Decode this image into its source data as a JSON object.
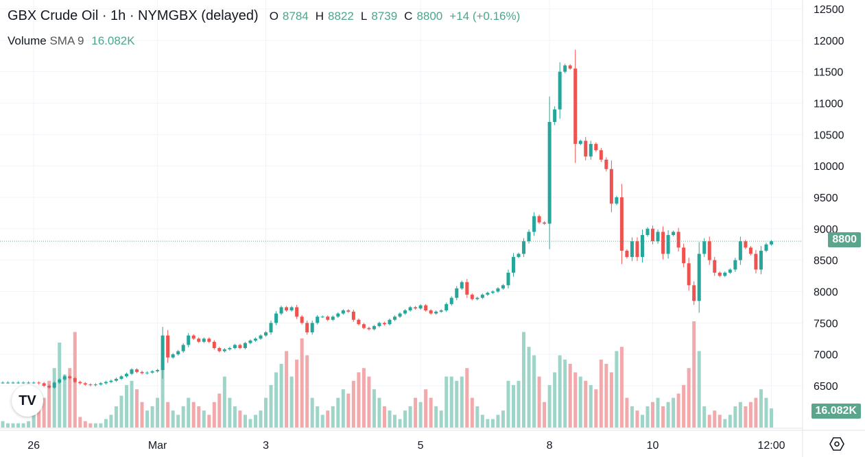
{
  "header": {
    "title": "GBX Crude Oil · 1h · NYMGBX (delayed)",
    "open_label": "O",
    "open": "8784",
    "high_label": "H",
    "high": "8822",
    "low_label": "L",
    "low": "8739",
    "close_label": "C",
    "close": "8800",
    "change": "+14 (+0.16%)"
  },
  "volume_legend": {
    "label": "Volume",
    "indicator": "SMA 9",
    "value": "16.082K"
  },
  "price_badge": "8800",
  "volume_badge": "16.082K",
  "logo_text": "TV",
  "icons": {
    "settings": "hexagon-settings-icon"
  },
  "colors": {
    "up": "#26a69a",
    "down": "#ef5350",
    "up_vol": "#9fd4c8",
    "down_vol": "#f2a9ab",
    "badge": "#5aa58c"
  },
  "chart_data": {
    "type": "candlestick",
    "y_ticks": [
      "12500",
      "12000",
      "11500",
      "11000",
      "10500",
      "10000",
      "9500",
      "9000",
      "8500",
      "8000",
      "7500",
      "7000",
      "6500"
    ],
    "ylim": [
      6500,
      12500
    ],
    "x_ticks": [
      {
        "label": "26",
        "index": 6
      },
      {
        "label": "Mar",
        "index": 30
      },
      {
        "label": "3",
        "index": 51
      },
      {
        "label": "5",
        "index": 81
      },
      {
        "label": "8",
        "index": 106
      },
      {
        "label": "10",
        "index": 126
      },
      {
        "label": "12:00",
        "index": 149
      }
    ],
    "last_price": 8800,
    "closes": [
      6550,
      6550,
      6550,
      6550,
      6550,
      6550,
      6550,
      6540,
      6500,
      6470,
      6550,
      6600,
      6650,
      6620,
      6560,
      6540,
      6520,
      6510,
      6520,
      6540,
      6560,
      6580,
      6610,
      6650,
      6690,
      6760,
      6720,
      6700,
      6710,
      6730,
      6750,
      7300,
      6950,
      7000,
      7050,
      7150,
      7300,
      7250,
      7200,
      7250,
      7200,
      7100,
      7050,
      7080,
      7100,
      7150,
      7100,
      7180,
      7220,
      7250,
      7300,
      7350,
      7500,
      7650,
      7750,
      7700,
      7750,
      7600,
      7500,
      7350,
      7500,
      7600,
      7600,
      7550,
      7600,
      7650,
      7700,
      7680,
      7550,
      7480,
      7420,
      7400,
      7450,
      7500,
      7480,
      7550,
      7600,
      7650,
      7700,
      7750,
      7730,
      7780,
      7700,
      7650,
      7680,
      7700,
      7800,
      7900,
      8050,
      8150,
      7950,
      7880,
      7900,
      7950,
      7980,
      8000,
      8050,
      8100,
      8300,
      8550,
      8600,
      8800,
      8950,
      9200,
      9100,
      9080,
      10700,
      10900,
      11500,
      11600,
      11550,
      10350,
      10400,
      10150,
      10350,
      10250,
      10100,
      9950,
      9400,
      9500,
      8650,
      8550,
      8800,
      8550,
      8900,
      9000,
      8800,
      8950,
      8600,
      8900,
      8950,
      8700,
      8450,
      8100,
      7850,
      8600,
      8800,
      8500,
      8300,
      8250,
      8300,
      8350,
      8500,
      8800,
      8700,
      8600,
      8350,
      8650,
      8750,
      8800
    ],
    "volumes_k": [
      3,
      2,
      2,
      2,
      2,
      3,
      6,
      10,
      14,
      22,
      28,
      40,
      25,
      28,
      45,
      5,
      3,
      2,
      2,
      2,
      4,
      6,
      10,
      15,
      20,
      22,
      18,
      12,
      8,
      10,
      14,
      32,
      12,
      8,
      6,
      10,
      14,
      12,
      10,
      8,
      6,
      12,
      16,
      24,
      14,
      10,
      8,
      6,
      4,
      6,
      8,
      14,
      20,
      26,
      30,
      36,
      24,
      32,
      42,
      34,
      14,
      10,
      6,
      8,
      10,
      14,
      18,
      16,
      22,
      26,
      28,
      24,
      18,
      14,
      10,
      8,
      6,
      4,
      8,
      10,
      14,
      12,
      18,
      14,
      10,
      8,
      24,
      24,
      22,
      24,
      28,
      14,
      10,
      6,
      4,
      4,
      6,
      8,
      22,
      20,
      22,
      45,
      38,
      34,
      24,
      12,
      20,
      26,
      34,
      32,
      30,
      26,
      24,
      22,
      20,
      18,
      32,
      30,
      26,
      36,
      38,
      14,
      10,
      8,
      6,
      10,
      12,
      14,
      10,
      12,
      14,
      16,
      20,
      28,
      50,
      36,
      10,
      6,
      8,
      6,
      4,
      6,
      10,
      12,
      10,
      12,
      14,
      18,
      14,
      9
    ]
  }
}
